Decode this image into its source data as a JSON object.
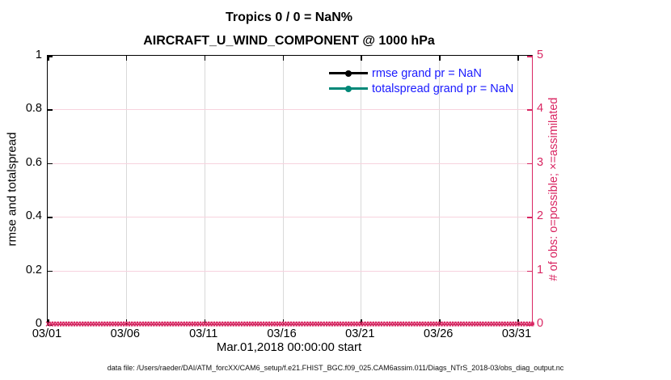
{
  "title": {
    "line1": "Tropics 0 / 0 = NaN%",
    "line2": "AIRCRAFT_U_WIND_COMPONENT @ 1000 hPa"
  },
  "axes": {
    "left": {
      "label": "rmse and totalspread",
      "ticks": [
        "0",
        "0.2",
        "0.4",
        "0.6",
        "0.8",
        "1"
      ]
    },
    "right": {
      "label": "# of obs: o=possible; ×=assimilated",
      "ticks": [
        "0",
        "1",
        "2",
        "3",
        "4",
        "5"
      ]
    },
    "x": {
      "label": "Mar.01,2018 00:00:00 start",
      "ticks": [
        "03/01",
        "03/06",
        "03/11",
        "03/16",
        "03/21",
        "03/26",
        "03/31"
      ]
    }
  },
  "legend": [
    {
      "label": "rmse grand pr = NaN",
      "color": "#000000",
      "marker": "filled-circle"
    },
    {
      "label": "totalspread grand pr = NaN",
      "color": "#008878",
      "marker": "filled-circle"
    }
  ],
  "marker_row": {
    "symbol": "×",
    "repeat": 210,
    "value": 0
  },
  "footer": {
    "text": "data file: /Users/raeder/DAI/ATM_forcXX/CAM6_setup/f.e21.FHIST_BGC.f09_025.CAM6assim.011/Diags_NTrS_2018-03/obs_diag_output.nc"
  },
  "colors": {
    "accent_pink": "#d92662",
    "grid_gray": "#d9d9d9",
    "grid_pink": "#f7d2de",
    "legend_text_blue": "#1a1aff",
    "rmse_black": "#000000",
    "totalspread_teal": "#008878"
  },
  "chart_data": {
    "type": "line",
    "title": "Tropics 0 / 0 = NaN%",
    "subtitle": "AIRCRAFT_U_WIND_COMPONENT @ 1000 hPa",
    "xlabel": "Mar.01,2018 00:00:00 start",
    "ylabel_left": "rmse and totalspread",
    "ylabel_right": "# of obs: o=possible; ×=assimilated",
    "xticks": [
      "03/01",
      "03/06",
      "03/11",
      "03/16",
      "03/21",
      "03/26",
      "03/31"
    ],
    "xlim": [
      "2018-03-01",
      "2018-04-01"
    ],
    "ylim_left": [
      0,
      1
    ],
    "ylim_right": [
      0,
      5
    ],
    "grid": true,
    "legend_position": "inside-top-right",
    "series": [
      {
        "name": "rmse grand pr = NaN",
        "axis": "left",
        "color": "#000000",
        "values": "NaN (no data plotted)"
      },
      {
        "name": "totalspread grand pr = NaN",
        "axis": "left",
        "color": "#008878",
        "values": "NaN (no data plotted)"
      },
      {
        "name": "assimilated obs count (× markers)",
        "axis": "right",
        "color": "#d92662",
        "values": "0 at every time step from 03/01 through 04/01"
      }
    ]
  }
}
